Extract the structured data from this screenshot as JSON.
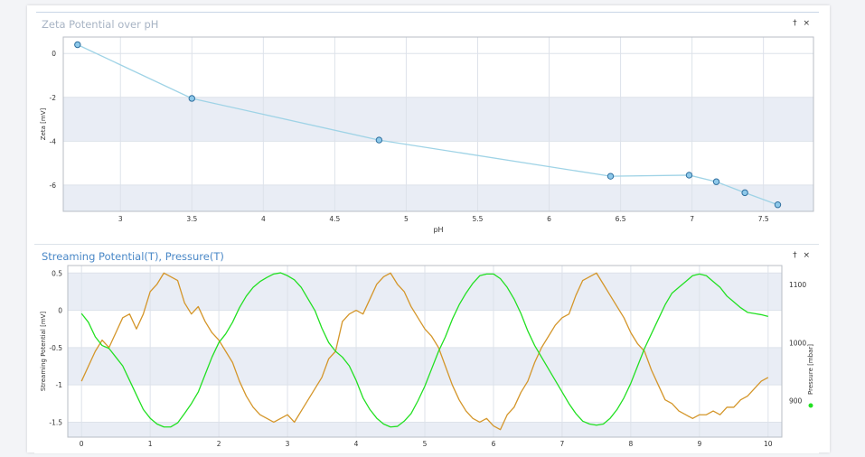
{
  "panels": [
    {
      "title": "Zeta Potential over pH",
      "pin_icon": "pin-icon",
      "close_icon": "close-icon",
      "pin_glyph": "†",
      "close_glyph": "×"
    },
    {
      "title": "Streaming Potential(T), Pressure(T)",
      "pin_icon": "pin-icon",
      "close_icon": "close-icon",
      "pin_glyph": "†",
      "close_glyph": "×"
    }
  ],
  "chart_data": [
    {
      "type": "line",
      "title": "Zeta Potential over pH",
      "xlabel": "pH",
      "ylabel": "Zeta [mV]",
      "xlim": [
        2.6,
        7.85
      ],
      "ylim": [
        -7.2,
        0.75
      ],
      "xticks": [
        3,
        3.5,
        4,
        4.5,
        5,
        5.5,
        6,
        6.5,
        7,
        7.5
      ],
      "yticks": [
        0,
        -2,
        -4,
        -6
      ],
      "grid": true,
      "bands": [
        [
          -4,
          -2
        ],
        [
          -7.2,
          -6
        ]
      ],
      "series": [
        {
          "x": [
            2.7,
            3.5,
            4.81,
            6.43,
            6.98,
            7.17,
            7.37,
            7.6
          ],
          "y": [
            0.4,
            -2.05,
            -3.95,
            -5.6,
            -5.55,
            -5.85,
            -6.35,
            -6.9
          ],
          "color": "#9fd3e6",
          "marker_fill": "#8ec9ea",
          "marker_stroke": "#2f6f9f"
        }
      ]
    },
    {
      "type": "line",
      "title": "Streaming Potential(T), Pressure(T)",
      "xlabel": "",
      "ylabel": "Streaming Potential [mV]",
      "y2label": "Pressure [mbar]",
      "xlim": [
        -0.2,
        10.2
      ],
      "ylim": [
        -1.7,
        0.6
      ],
      "y2lim": [
        837.5,
        1132.5
      ],
      "xticks": [
        0,
        1,
        2,
        3,
        4,
        5,
        6,
        7,
        8,
        9,
        10
      ],
      "yticks": [
        0.5,
        0,
        -0.5,
        -1,
        -1.5
      ],
      "y2ticks": [
        1100,
        1000,
        900
      ],
      "grid": true,
      "bands": [
        [
          0,
          0.5
        ],
        [
          -1,
          -0.5
        ],
        [
          -1.7,
          -1.5
        ]
      ],
      "legend": {
        "label": "Pressure [mbar]",
        "placement": "right"
      },
      "series": [
        {
          "name": "Streaming Potential",
          "color": "#d4962a",
          "x": [
            0,
            0.1,
            0.2,
            0.3,
            0.4,
            0.5,
            0.6,
            0.7,
            0.8,
            0.9,
            1.0,
            1.1,
            1.2,
            1.3,
            1.4,
            1.5,
            1.6,
            1.7,
            1.8,
            1.9,
            2.0,
            2.1,
            2.2,
            2.3,
            2.4,
            2.5,
            2.6,
            2.7,
            2.8,
            2.9,
            3.0,
            3.1,
            3.2,
            3.3,
            3.4,
            3.5,
            3.6,
            3.7,
            3.8,
            3.9,
            4.0,
            4.1,
            4.2,
            4.3,
            4.4,
            4.5,
            4.6,
            4.7,
            4.8,
            4.9,
            5.0,
            5.1,
            5.2,
            5.3,
            5.4,
            5.5,
            5.6,
            5.7,
            5.8,
            5.9,
            6.0,
            6.1,
            6.2,
            6.3,
            6.4,
            6.5,
            6.6,
            6.7,
            6.8,
            6.9,
            7.0,
            7.1,
            7.2,
            7.3,
            7.4,
            7.5,
            7.6,
            7.7,
            7.8,
            7.9,
            8.0,
            8.1,
            8.2,
            8.3,
            8.4,
            8.5,
            8.6,
            8.7,
            8.8,
            8.9,
            9.0,
            9.1,
            9.2,
            9.3,
            9.4,
            9.5,
            9.6,
            9.7,
            9.8,
            9.9,
            10.0
          ],
          "y": [
            -0.95,
            -0.75,
            -0.55,
            -0.4,
            -0.5,
            -0.3,
            -0.1,
            -0.05,
            -0.25,
            -0.05,
            0.25,
            0.35,
            0.5,
            0.45,
            0.4,
            0.1,
            -0.05,
            0.05,
            -0.15,
            -0.3,
            -0.4,
            -0.55,
            -0.7,
            -0.95,
            -1.15,
            -1.3,
            -1.4,
            -1.45,
            -1.5,
            -1.45,
            -1.4,
            -1.5,
            -1.35,
            -1.2,
            -1.05,
            -0.9,
            -0.65,
            -0.55,
            -0.15,
            -0.05,
            0.0,
            -0.05,
            0.15,
            0.35,
            0.45,
            0.5,
            0.35,
            0.25,
            0.05,
            -0.1,
            -0.25,
            -0.35,
            -0.5,
            -0.75,
            -1.0,
            -1.2,
            -1.35,
            -1.45,
            -1.5,
            -1.45,
            -1.55,
            -1.6,
            -1.4,
            -1.3,
            -1.1,
            -0.95,
            -0.7,
            -0.5,
            -0.35,
            -0.2,
            -0.1,
            -0.05,
            0.2,
            0.4,
            0.45,
            0.5,
            0.35,
            0.2,
            0.05,
            -0.1,
            -0.3,
            -0.45,
            -0.55,
            -0.8,
            -1.0,
            -1.2,
            -1.25,
            -1.35,
            -1.4,
            -1.45,
            -1.4,
            -1.4,
            -1.35,
            -1.4,
            -1.3,
            -1.3,
            -1.2,
            -1.15,
            -1.05,
            -0.95,
            -0.9
          ]
        },
        {
          "name": "Pressure [mbar]",
          "axis": "right",
          "color": "#22e022",
          "x": [
            0,
            0.1,
            0.2,
            0.3,
            0.4,
            0.5,
            0.6,
            0.7,
            0.8,
            0.9,
            1.0,
            1.1,
            1.2,
            1.3,
            1.4,
            1.5,
            1.6,
            1.7,
            1.8,
            1.9,
            2.0,
            2.1,
            2.2,
            2.3,
            2.4,
            2.5,
            2.6,
            2.7,
            2.8,
            2.9,
            3.0,
            3.1,
            3.2,
            3.3,
            3.4,
            3.5,
            3.6,
            3.7,
            3.8,
            3.9,
            4.0,
            4.1,
            4.2,
            4.3,
            4.4,
            4.5,
            4.6,
            4.7,
            4.8,
            4.9,
            5.0,
            5.1,
            5.2,
            5.3,
            5.4,
            5.5,
            5.6,
            5.7,
            5.8,
            5.9,
            6.0,
            6.1,
            6.2,
            6.3,
            6.4,
            6.5,
            6.6,
            6.7,
            6.8,
            6.9,
            7.0,
            7.1,
            7.2,
            7.3,
            7.4,
            7.5,
            7.6,
            7.7,
            7.8,
            7.9,
            8.0,
            8.1,
            8.2,
            8.3,
            8.4,
            8.5,
            8.6,
            8.7,
            8.8,
            8.9,
            9.0,
            9.1,
            9.2,
            9.3,
            9.4,
            9.5,
            9.6,
            9.7,
            9.8,
            9.9,
            10.0
          ],
          "y": [
            1050,
            1035,
            1010,
            995,
            990,
            975,
            960,
            935,
            910,
            885,
            870,
            860,
            855,
            855,
            862,
            878,
            895,
            915,
            945,
            975,
            1000,
            1015,
            1035,
            1060,
            1080,
            1095,
            1105,
            1112,
            1118,
            1120,
            1115,
            1108,
            1095,
            1075,
            1055,
            1025,
            1000,
            985,
            975,
            960,
            935,
            905,
            885,
            870,
            860,
            855,
            856,
            865,
            878,
            900,
            925,
            955,
            985,
            1010,
            1040,
            1065,
            1085,
            1102,
            1115,
            1118,
            1118,
            1110,
            1095,
            1075,
            1050,
            1020,
            995,
            975,
            955,
            935,
            915,
            895,
            878,
            865,
            860,
            858,
            860,
            870,
            885,
            905,
            930,
            960,
            990,
            1015,
            1040,
            1065,
            1085,
            1095,
            1105,
            1115,
            1118,
            1115,
            1105,
            1095,
            1080,
            1070,
            1060,
            1052,
            1050,
            1048,
            1045
          ]
        }
      ]
    }
  ]
}
